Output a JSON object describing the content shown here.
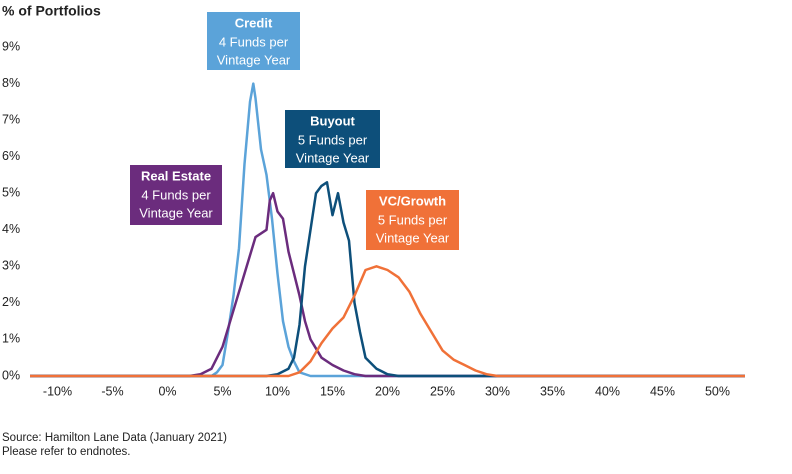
{
  "chart_data": {
    "type": "line",
    "y_label": "% of Portfolios",
    "xlim": [
      -12.5,
      52.5
    ],
    "ylim": [
      0,
      9
    ],
    "xticks": [
      {
        "value": -10,
        "label": "-10%"
      },
      {
        "value": -5,
        "label": "-5%"
      },
      {
        "value": 0,
        "label": "0%"
      },
      {
        "value": 5,
        "label": "5%"
      },
      {
        "value": 10,
        "label": "10%"
      },
      {
        "value": 15,
        "label": "15%"
      },
      {
        "value": 20,
        "label": "20%"
      },
      {
        "value": 25,
        "label": "25%"
      },
      {
        "value": 30,
        "label": "30%"
      },
      {
        "value": 35,
        "label": "35%"
      },
      {
        "value": 40,
        "label": "40%"
      },
      {
        "value": 45,
        "label": "45%"
      },
      {
        "value": 50,
        "label": "50%"
      }
    ],
    "yticks": [
      {
        "value": 0,
        "label": "0%"
      },
      {
        "value": 1,
        "label": "1%"
      },
      {
        "value": 2,
        "label": "2%"
      },
      {
        "value": 3,
        "label": "3%"
      },
      {
        "value": 4,
        "label": "4%"
      },
      {
        "value": 5,
        "label": "5%"
      },
      {
        "value": 6,
        "label": "6%"
      },
      {
        "value": 7,
        "label": "7%"
      },
      {
        "value": 8,
        "label": "8%"
      },
      {
        "value": 9,
        "label": "9%"
      }
    ],
    "series": [
      {
        "name": "Credit",
        "color": "#5ba3d9",
        "x": [
          -12.5,
          4,
          4.5,
          5,
          5.5,
          6,
          6.5,
          7,
          7.5,
          7.8,
          8,
          8.5,
          9,
          9.5,
          10,
          10.5,
          11,
          11.5,
          12,
          13,
          52.5
        ],
        "values": [
          0,
          0,
          0.1,
          0.3,
          1.2,
          2.2,
          3.5,
          5.8,
          7.5,
          8.0,
          7.6,
          6.2,
          5.5,
          4.3,
          2.8,
          1.5,
          0.8,
          0.4,
          0.1,
          0,
          0
        ]
      },
      {
        "name": "Real Estate",
        "color": "#6b2c7d",
        "x": [
          -12.5,
          2,
          3,
          4,
          5,
          6,
          7,
          8,
          9,
          9.3,
          9.6,
          10,
          10.5,
          11,
          11.5,
          12,
          12.5,
          13,
          14,
          15,
          16,
          17,
          18,
          52.5
        ],
        "values": [
          0,
          0,
          0.05,
          0.2,
          0.8,
          1.8,
          2.8,
          3.8,
          4.0,
          4.8,
          5.0,
          4.5,
          4.3,
          3.4,
          2.8,
          2.2,
          1.5,
          1.0,
          0.5,
          0.3,
          0.15,
          0.05,
          0,
          0
        ]
      },
      {
        "name": "Buyout",
        "color": "#0d4f7a",
        "x": [
          -12.5,
          9,
          10,
          11,
          11.5,
          12,
          12.5,
          13,
          13.5,
          14,
          14.5,
          15,
          15.5,
          16,
          16.5,
          17,
          17.5,
          18,
          19,
          20,
          21,
          52.5
        ],
        "values": [
          0,
          0,
          0.05,
          0.2,
          0.5,
          1.4,
          3.0,
          4.0,
          5.0,
          5.2,
          5.3,
          4.4,
          5.0,
          4.2,
          3.7,
          2.0,
          1.2,
          0.5,
          0.2,
          0.05,
          0,
          0
        ]
      },
      {
        "name": "VC/Growth",
        "color": "#f07138",
        "x": [
          -12.5,
          11,
          12,
          13,
          14,
          15,
          16,
          17,
          18,
          19,
          20,
          21,
          22,
          23,
          24,
          25,
          26,
          27,
          28,
          29,
          30,
          52.5
        ],
        "values": [
          0,
          0,
          0.1,
          0.4,
          0.9,
          1.3,
          1.6,
          2.2,
          2.9,
          3.0,
          2.9,
          2.7,
          2.3,
          1.7,
          1.2,
          0.7,
          0.45,
          0.3,
          0.15,
          0.05,
          0,
          0
        ]
      }
    ],
    "annotations": [
      {
        "title": "Credit",
        "lines": [
          "4 Funds per",
          "Vintage Year"
        ],
        "color": "#5ba3d9"
      },
      {
        "title": "Real Estate",
        "lines": [
          "4 Funds per",
          "Vintage Year"
        ],
        "color": "#6b2c7d"
      },
      {
        "title": "Buyout",
        "lines": [
          "5 Funds per",
          "Vintage Year"
        ],
        "color": "#0d4f7a"
      },
      {
        "title": "VC/Growth",
        "lines": [
          "5 Funds per",
          "Vintage Year"
        ],
        "color": "#f07138"
      }
    ],
    "source": [
      "Source: Hamilton Lane Data (January 2021)",
      "Please refer to endnotes."
    ]
  }
}
